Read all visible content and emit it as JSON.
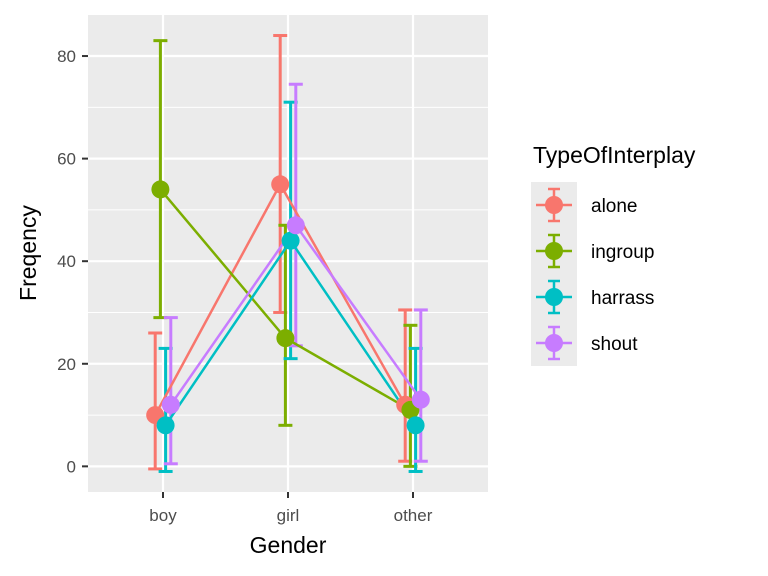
{
  "chart_data": {
    "type": "line",
    "title": "",
    "xlabel": "Gender",
    "ylabel": "Freqency",
    "categories": [
      "boy",
      "girl",
      "other"
    ],
    "ylim": [
      -5,
      88
    ],
    "yticks": [
      0,
      20,
      40,
      60,
      80
    ],
    "grid": true,
    "legend": {
      "title": "TypeOfInterplay",
      "position": "right"
    },
    "error_bars": true,
    "series": [
      {
        "name": "alone",
        "color": "#F8766D",
        "values": [
          10,
          55,
          12
        ],
        "lower": [
          -0.5,
          30,
          1
        ],
        "upper": [
          26,
          84,
          30.5
        ]
      },
      {
        "name": "ingroup",
        "color": "#7CAE00",
        "values": [
          54,
          25,
          11
        ],
        "lower": [
          29,
          8,
          0
        ],
        "upper": [
          83,
          47,
          27.5
        ]
      },
      {
        "name": "harrass",
        "color": "#00BFC4",
        "values": [
          8,
          44,
          8
        ],
        "lower": [
          -1,
          21,
          -1
        ],
        "upper": [
          23,
          71,
          23
        ]
      },
      {
        "name": "shout",
        "color": "#C77CFF",
        "values": [
          12,
          47,
          13
        ],
        "lower": [
          0.5,
          23.5,
          1
        ],
        "upper": [
          29,
          74.5,
          30.5
        ]
      }
    ]
  }
}
